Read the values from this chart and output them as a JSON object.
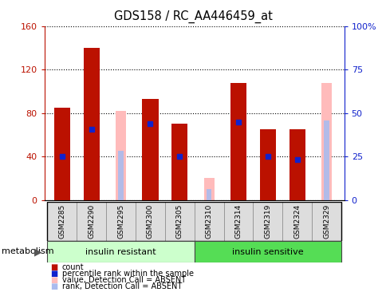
{
  "title": "GDS158 / RC_AA446459_at",
  "samples": [
    "GSM2285",
    "GSM2290",
    "GSM2295",
    "GSM2300",
    "GSM2305",
    "GSM2310",
    "GSM2314",
    "GSM2319",
    "GSM2324",
    "GSM2329"
  ],
  "count_values": [
    85,
    140,
    null,
    93,
    70,
    null,
    108,
    65,
    65,
    null
  ],
  "rank_values_left": [
    40,
    65,
    null,
    70,
    40,
    null,
    72,
    40,
    37,
    null
  ],
  "absent_value": [
    null,
    null,
    82,
    null,
    null,
    20,
    null,
    null,
    null,
    108
  ],
  "absent_rank_left": [
    null,
    null,
    45,
    null,
    null,
    10,
    null,
    null,
    null,
    73
  ],
  "group1_label": "insulin resistant",
  "group2_label": "insulin sensitive",
  "group1_indices": [
    0,
    1,
    2,
    3,
    4
  ],
  "group2_indices": [
    5,
    6,
    7,
    8,
    9
  ],
  "ylim_left": [
    0,
    160
  ],
  "ylim_right": [
    0,
    100
  ],
  "yticks_left": [
    0,
    40,
    80,
    120,
    160
  ],
  "yticks_right": [
    0,
    25,
    50,
    75,
    100
  ],
  "ytick_labels_right": [
    "0",
    "25",
    "50",
    "75",
    "100%"
  ],
  "color_red": "#bb1100",
  "color_blue": "#1122cc",
  "color_pink": "#ffbbbb",
  "color_lightblue": "#aabbee",
  "color_group1_bg": "#ccffcc",
  "color_group2_bg": "#55dd55",
  "color_samplebg": "#dddddd",
  "bar_width": 0.55,
  "absent_bar_width": 0.35,
  "dot_size": 30,
  "legend_items": [
    "count",
    "percentile rank within the sample",
    "value, Detection Call = ABSENT",
    "rank, Detection Call = ABSENT"
  ]
}
